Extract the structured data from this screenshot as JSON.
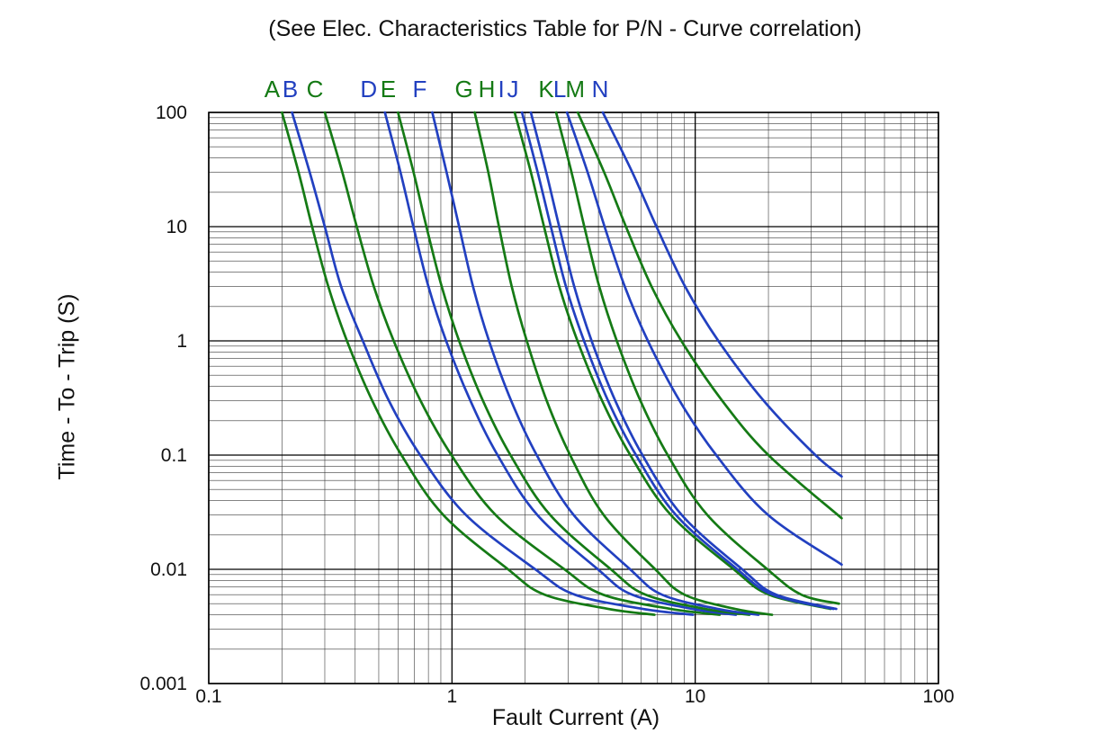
{
  "chart_data": {
    "type": "line",
    "title": "(See Elec. Characteristics Table for P/N - Curve correlation)",
    "xlabel": "Fault Current (A)",
    "ylabel": "Time - To - Trip (S)",
    "x_scale": "log",
    "y_scale": "log",
    "xlim": [
      0.1,
      100
    ],
    "ylim": [
      0.001,
      100
    ],
    "x_ticks": [
      "0.1",
      "1",
      "10",
      "100"
    ],
    "y_ticks": [
      "100",
      "10",
      "1",
      "0.1",
      "0.01",
      "0.001"
    ],
    "grid": "log-log minor and major gridlines, black on white",
    "legend_position": "curve letters above plot top edge",
    "colors": {
      "green": "#157a15",
      "blue": "#2240c0",
      "grid_minor": "#3a3a3a",
      "grid_major": "#000000",
      "text": "#111111"
    },
    "series": [
      {
        "name": "A",
        "color": "green",
        "label_dx": -11,
        "points": [
          [
            0.2,
            100
          ],
          [
            0.234,
            30
          ],
          [
            0.266,
            10
          ],
          [
            0.31,
            3
          ],
          [
            0.37,
            1
          ],
          [
            0.47,
            0.3
          ],
          [
            0.62,
            0.1
          ],
          [
            0.92,
            0.03
          ],
          [
            1.7,
            0.01
          ],
          [
            2.4,
            0.006
          ],
          [
            4.4,
            0.0045
          ],
          [
            6.8,
            0.004
          ]
        ]
      },
      {
        "name": "B",
        "color": "blue",
        "label_dx": -2,
        "points": [
          [
            0.22,
            100
          ],
          [
            0.26,
            30
          ],
          [
            0.3,
            10
          ],
          [
            0.35,
            3
          ],
          [
            0.43,
            1
          ],
          [
            0.55,
            0.3
          ],
          [
            0.74,
            0.1
          ],
          [
            1.14,
            0.03
          ],
          [
            2.2,
            0.01
          ],
          [
            3.2,
            0.006
          ],
          [
            6.1,
            0.0045
          ],
          [
            9.8,
            0.004
          ]
        ]
      },
      {
        "name": "C",
        "color": "green",
        "label_dx": -11,
        "points": [
          [
            0.3,
            100
          ],
          [
            0.354,
            30
          ],
          [
            0.406,
            10
          ],
          [
            0.477,
            3
          ],
          [
            0.576,
            1
          ],
          [
            0.742,
            0.3
          ],
          [
            0.995,
            0.1
          ],
          [
            1.51,
            0.03
          ],
          [
            2.9,
            0.01
          ],
          [
            4.18,
            0.006
          ],
          [
            7.94,
            0.0045
          ],
          [
            12.6,
            0.004
          ]
        ]
      },
      {
        "name": "D",
        "color": "blue",
        "label_dx": -18,
        "points": [
          [
            0.53,
            100
          ],
          [
            0.614,
            30
          ],
          [
            0.694,
            10
          ],
          [
            0.8,
            3
          ],
          [
            0.946,
            1
          ],
          [
            1.19,
            0.3
          ],
          [
            1.54,
            0.1
          ],
          [
            2.24,
            0.03
          ],
          [
            3.98,
            0.01
          ],
          [
            5.5,
            0.006
          ],
          [
            9.75,
            0.0045
          ],
          [
            14.7,
            0.004
          ]
        ]
      },
      {
        "name": "E",
        "color": "green",
        "label_dx": -11,
        "points": [
          [
            0.6,
            100
          ],
          [
            0.695,
            30
          ],
          [
            0.785,
            10
          ],
          [
            0.907,
            3
          ],
          [
            1.07,
            1
          ],
          [
            1.34,
            0.3
          ],
          [
            1.74,
            0.1
          ],
          [
            2.53,
            0.03
          ],
          [
            4.5,
            0.01
          ],
          [
            6.24,
            0.006
          ],
          [
            11.0,
            0.0045
          ],
          [
            16.7,
            0.004
          ]
        ]
      },
      {
        "name": "F",
        "color": "blue",
        "label_dx": -14,
        "points": [
          [
            0.83,
            100
          ],
          [
            0.95,
            30
          ],
          [
            1.07,
            10
          ],
          [
            1.22,
            3
          ],
          [
            1.42,
            1
          ],
          [
            1.75,
            0.3
          ],
          [
            2.23,
            0.1
          ],
          [
            3.16,
            0.03
          ],
          [
            5.4,
            0.01
          ],
          [
            7.3,
            0.006
          ],
          [
            12.4,
            0.0045
          ],
          [
            18.2,
            0.004
          ]
        ]
      },
      {
        "name": "G",
        "color": "green",
        "label_dx": -12,
        "points": [
          [
            1.24,
            100
          ],
          [
            1.41,
            30
          ],
          [
            1.56,
            10
          ],
          [
            1.76,
            3
          ],
          [
            2.03,
            1
          ],
          [
            2.45,
            0.3
          ],
          [
            3.06,
            0.1
          ],
          [
            4.2,
            0.03
          ],
          [
            6.85,
            0.01
          ],
          [
            9.03,
            0.006
          ],
          [
            14.6,
            0.0045
          ],
          [
            20.7,
            0.004
          ]
        ]
      },
      {
        "name": "H",
        "color": "green",
        "label_dx": -31,
        "points": [
          [
            1.81,
            100
          ],
          [
            2.11,
            30
          ],
          [
            2.39,
            10
          ],
          [
            2.76,
            3
          ],
          [
            3.28,
            1
          ],
          [
            4.14,
            0.3
          ],
          [
            5.41,
            0.1
          ],
          [
            7.93,
            0.03
          ],
          [
            14.4,
            0.01
          ],
          [
            20.1,
            0.006
          ],
          [
            36.0,
            0.0045
          ]
        ]
      },
      {
        "name": "I",
        "color": "blue",
        "label_dx": -23,
        "points": [
          [
            1.94,
            100
          ],
          [
            2.25,
            30
          ],
          [
            2.55,
            10
          ],
          [
            2.94,
            3
          ],
          [
            3.49,
            1
          ],
          [
            4.38,
            0.3
          ],
          [
            5.71,
            0.1
          ],
          [
            8.32,
            0.03
          ],
          [
            14.9,
            0.01
          ],
          [
            20.8,
            0.006
          ],
          [
            37.0,
            0.0045
          ]
        ]
      },
      {
        "name": "J",
        "color": "blue",
        "label_dx": -20,
        "points": [
          [
            2.11,
            100
          ],
          [
            2.44,
            30
          ],
          [
            2.76,
            10
          ],
          [
            3.18,
            3
          ],
          [
            3.75,
            1
          ],
          [
            4.69,
            0.3
          ],
          [
            6.07,
            0.1
          ],
          [
            8.79,
            0.03
          ],
          [
            15.6,
            0.01
          ],
          [
            21.5,
            0.006
          ],
          [
            38.0,
            0.0045
          ]
        ]
      },
      {
        "name": "K",
        "color": "green",
        "label_dx": -11,
        "points": [
          [
            2.68,
            100
          ],
          [
            3.1,
            30
          ],
          [
            3.5,
            10
          ],
          [
            4.03,
            3
          ],
          [
            4.76,
            1
          ],
          [
            5.95,
            0.3
          ],
          [
            7.71,
            0.1
          ],
          [
            11.2,
            0.03
          ],
          [
            19.8,
            0.01
          ],
          [
            27.3,
            0.006
          ],
          [
            39.0,
            0.005
          ]
        ]
      },
      {
        "name": "L",
        "color": "blue",
        "label_dx": -8,
        "points": [
          [
            2.97,
            100
          ],
          [
            3.61,
            30
          ],
          [
            4.24,
            10
          ],
          [
            5.13,
            3
          ],
          [
            6.39,
            1
          ],
          [
            8.62,
            0.3
          ],
          [
            12.2,
            0.1
          ],
          [
            19.9,
            0.03
          ],
          [
            40.0,
            0.011
          ]
        ]
      },
      {
        "name": "M",
        "color": "green",
        "label_dx": -3,
        "points": [
          [
            3.29,
            100
          ],
          [
            4.22,
            30
          ],
          [
            5.19,
            10
          ],
          [
            6.61,
            3
          ],
          [
            8.77,
            1
          ],
          [
            12.9,
            0.3
          ],
          [
            20.0,
            0.1
          ],
          [
            40.0,
            0.028
          ]
        ]
      },
      {
        "name": "N",
        "color": "blue",
        "label_dx": -3,
        "points": [
          [
            4.17,
            100
          ],
          [
            5.51,
            30
          ],
          [
            6.93,
            10
          ],
          [
            9.08,
            3
          ],
          [
            12.45,
            1
          ],
          [
            19.1,
            0.3
          ],
          [
            31.2,
            0.1
          ],
          [
            40.0,
            0.065
          ]
        ]
      }
    ]
  }
}
